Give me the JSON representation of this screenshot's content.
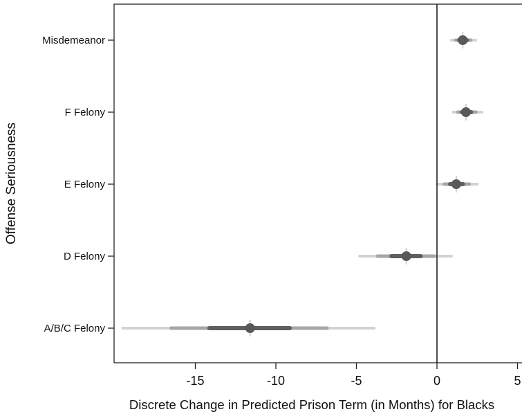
{
  "chart_data": {
    "type": "scatter",
    "title": "",
    "xlabel": "Discrete Change in Predicted Prison Term (in Months) for Blacks",
    "ylabel": "Offense Seriousness",
    "xlim": [
      -19.8,
      5.2
    ],
    "x_ticks": [
      "-15",
      "-10",
      "-5",
      "0",
      "5"
    ],
    "categories": [
      "Misdemeanor",
      "F Felony",
      "E Felony",
      "D Felony",
      "A/B/C Felony"
    ],
    "points": [
      {
        "category": "Misdemeanor",
        "estimate": 1.6,
        "ci_low": 0.9,
        "ci_high": 2.4
      },
      {
        "category": "F Felony",
        "estimate": 1.8,
        "ci_low": 1.0,
        "ci_high": 2.8
      },
      {
        "category": "E Felony",
        "estimate": 1.2,
        "ci_low": 0.0,
        "ci_high": 2.5
      },
      {
        "category": "D Felony",
        "estimate": -1.9,
        "ci_low": -4.8,
        "ci_high": 0.9
      },
      {
        "category": "A/B/C Felony",
        "estimate": -11.6,
        "ci_low": -19.5,
        "ci_high": -3.9
      }
    ],
    "reference_line_x": 0,
    "grid": false,
    "legend": "none",
    "colors": {
      "point": "#595959",
      "ci_outer": "#d2d2d2",
      "ci_mid": "#a6a6a6",
      "ci_inner": "#5f5f5f",
      "axis": "#222222"
    }
  }
}
